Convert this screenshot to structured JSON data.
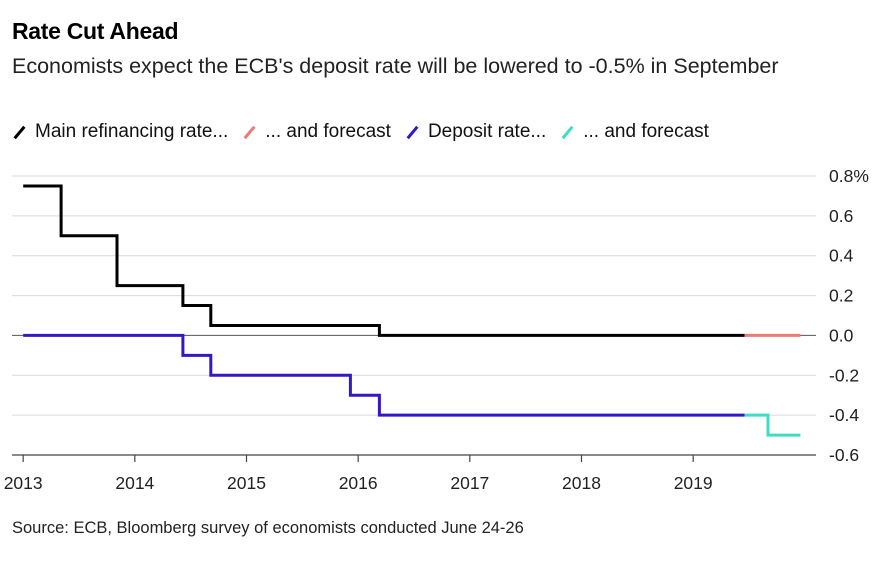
{
  "title": "Rate Cut Ahead",
  "subtitle": "Economists expect the ECB's deposit rate will be lowered to -0.5% in September",
  "source": "Source: ECB, Bloomberg survey of economists conducted June 24-26",
  "colors": {
    "main_refi": "#000000",
    "main_refi_forecast": "#ee7a75",
    "deposit": "#3617c8",
    "deposit_forecast": "#3fdcc4",
    "grid": "#d9d9d9",
    "zero_line": "#555555"
  },
  "legend": [
    {
      "label": "Main refinancing rate...",
      "color": "#000000"
    },
    {
      "label": "... and forecast",
      "color": "#ee7a75"
    },
    {
      "label": "Deposit rate...",
      "color": "#3617c8"
    },
    {
      "label": "... and forecast",
      "color": "#3fdcc4"
    }
  ],
  "chart_data": {
    "type": "line",
    "title": "Rate Cut Ahead",
    "xlabel": "",
    "ylabel": "",
    "xlim": [
      2012.9,
      2020.1
    ],
    "ylim": [
      -0.6,
      0.8
    ],
    "y_ticks": [
      0.8,
      0.6,
      0.4,
      0.2,
      0.0,
      -0.2,
      -0.4,
      -0.6
    ],
    "y_tick_labels": [
      "0.8%",
      "0.6",
      "0.4",
      "0.2",
      "0.0",
      "-0.2",
      "-0.4",
      "-0.6"
    ],
    "x_ticks": [
      2013,
      2014,
      2015,
      2016,
      2017,
      2018,
      2019
    ],
    "x_tick_labels": [
      "2013",
      "2014",
      "2015",
      "2016",
      "2017",
      "2018",
      "2019"
    ],
    "grid": true,
    "legend_position": "top",
    "series": [
      {
        "name": "Main refinancing rate...",
        "color": "#000000",
        "style": "step",
        "points": [
          [
            2013.0,
            0.75
          ],
          [
            2013.34,
            0.75
          ],
          [
            2013.34,
            0.5
          ],
          [
            2013.84,
            0.5
          ],
          [
            2013.84,
            0.25
          ],
          [
            2014.43,
            0.25
          ],
          [
            2014.43,
            0.15
          ],
          [
            2014.68,
            0.15
          ],
          [
            2014.68,
            0.05
          ],
          [
            2016.19,
            0.05
          ],
          [
            2016.19,
            0.0
          ],
          [
            2019.46,
            0.0
          ]
        ]
      },
      {
        "name": "... and forecast",
        "color": "#ee7a75",
        "style": "step",
        "points": [
          [
            2019.46,
            0.0
          ],
          [
            2019.96,
            0.0
          ]
        ]
      },
      {
        "name": "Deposit rate...",
        "color": "#3617c8",
        "style": "step",
        "points": [
          [
            2013.0,
            0.0
          ],
          [
            2014.43,
            0.0
          ],
          [
            2014.43,
            -0.1
          ],
          [
            2014.68,
            -0.1
          ],
          [
            2014.68,
            -0.2
          ],
          [
            2015.93,
            -0.2
          ],
          [
            2015.93,
            -0.3
          ],
          [
            2016.19,
            -0.3
          ],
          [
            2016.19,
            -0.4
          ],
          [
            2019.46,
            -0.4
          ]
        ]
      },
      {
        "name": "... and forecast",
        "color": "#3fdcc4",
        "style": "step",
        "points": [
          [
            2019.46,
            -0.4
          ],
          [
            2019.67,
            -0.4
          ],
          [
            2019.67,
            -0.5
          ],
          [
            2019.96,
            -0.5
          ]
        ]
      }
    ]
  }
}
